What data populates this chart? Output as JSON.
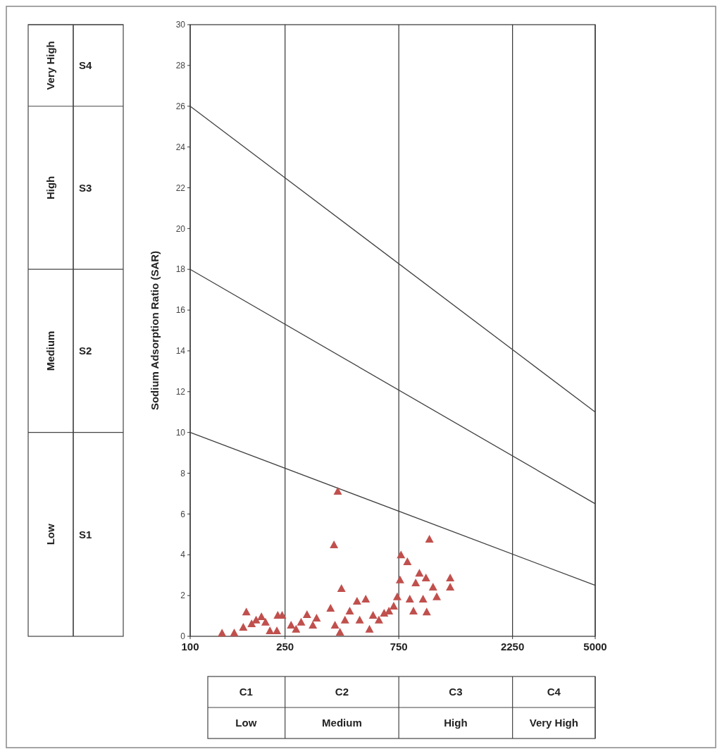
{
  "chart_data": {
    "type": "scatter",
    "ylabel": "Sodium Adsorption  Ratio (SAR)",
    "log": "x",
    "grid": "x",
    "xlim": [
      100,
      5000
    ],
    "xticks": [
      100,
      250,
      750,
      2250,
      5000
    ],
    "ylim": [
      0,
      30
    ],
    "yticks": [
      0,
      2,
      4,
      6,
      8,
      10,
      12,
      14,
      16,
      18,
      20,
      22,
      24,
      26,
      28,
      30
    ],
    "series": [
      {
        "type": "line",
        "color": "#404040",
        "marker": "none",
        "x": [
          100,
          5000
        ],
        "values": [
          10,
          2.5
        ]
      },
      {
        "type": "line",
        "color": "#404040",
        "marker": "none",
        "x": [
          100,
          5000
        ],
        "values": [
          18,
          6.5
        ]
      },
      {
        "type": "line",
        "color": "#404040",
        "marker": "none",
        "x": [
          100,
          5000
        ],
        "values": [
          26,
          11
        ]
      },
      {
        "color": "#c0504d",
        "marker": "triangle",
        "x": [
          136,
          153,
          172,
          167,
          181,
          189,
          199,
          207,
          216,
          231,
          233,
          243,
          265,
          278,
          292,
          309,
          327,
          339,
          388,
          401,
          416,
          431,
          405,
          425,
          446,
          467,
          501,
          514,
          545,
          565,
          585,
          619,
          651,
          682,
          714,
          739,
          759,
          766,
          815,
          834,
          864,
          883,
          915,
          948,
          982,
          975,
          1008,
          1044,
          1082,
          1232,
          1232
        ],
        "values": [
          0.16,
          0.17,
          1.2,
          0.45,
          0.62,
          0.8,
          0.97,
          0.7,
          0.28,
          0.28,
          1.04,
          1.04,
          0.55,
          0.35,
          0.7,
          1.07,
          0.55,
          0.9,
          1.38,
          4.49,
          7.12,
          2.35,
          0.55,
          0.21,
          0.8,
          1.24,
          1.73,
          0.8,
          1.83,
          0.35,
          1.04,
          0.8,
          1.14,
          1.24,
          1.49,
          1.94,
          2.77,
          4.0,
          3.66,
          1.83,
          1.24,
          2.63,
          3.1,
          1.83,
          1.2,
          2.87,
          4.77,
          2.42,
          1.94,
          2.87,
          2.42
        ]
      }
    ],
    "annotations": [
      "Low",
      "S1",
      "Medium",
      "S2",
      "High",
      "S3",
      "Very High",
      "S4",
      "C1",
      "Low",
      "C2",
      "Medium",
      "C3",
      "High",
      "C4",
      "Very High"
    ]
  }
}
